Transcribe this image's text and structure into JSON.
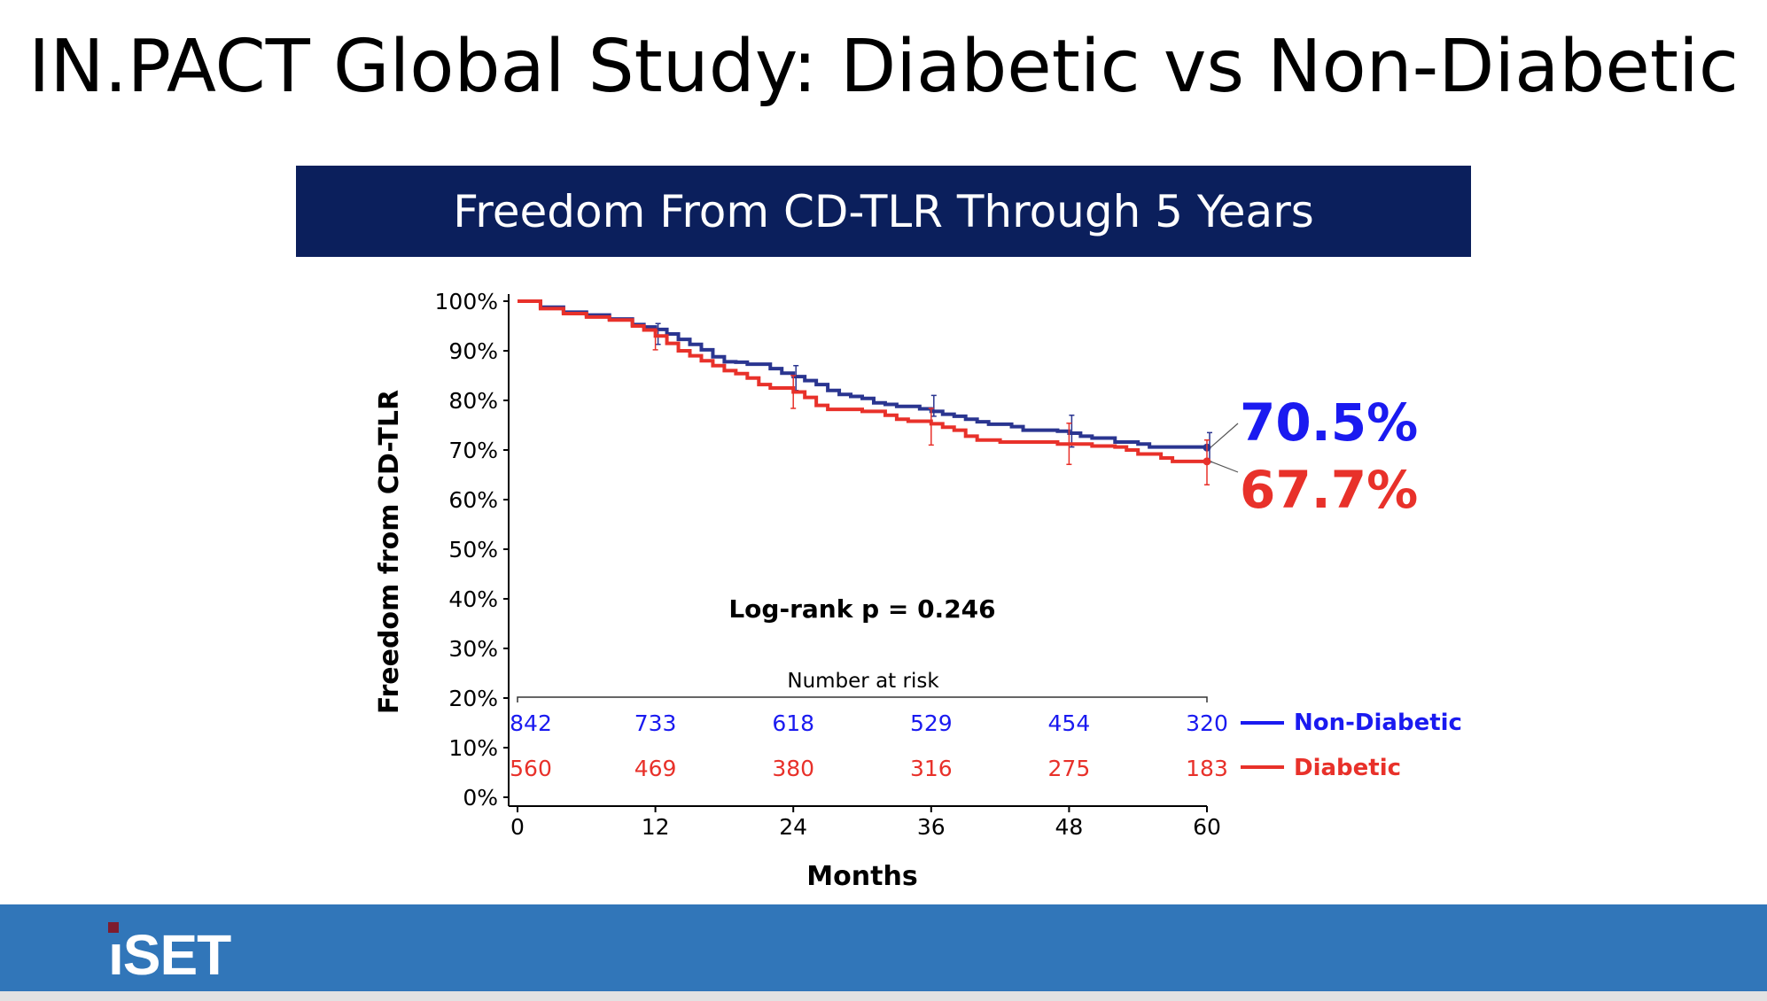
{
  "slide": {
    "title": "IN.PACT Global Study: Diabetic vs Non-Diabetic",
    "banner": "Freedom From CD-TLR Through 5 Years"
  },
  "footer": {
    "logo_text": "iSET",
    "colors": {
      "bar": "#3176b9",
      "logo_dot": "#7e1c2e"
    }
  },
  "chart_data": {
    "type": "line",
    "subtype": "kaplan-meier step",
    "title": "Freedom From CD-TLR Through 5 Years",
    "xlabel": "Months",
    "ylabel": "Freedom from CD-TLR",
    "xlim": [
      0,
      60
    ],
    "ylim": [
      0,
      100
    ],
    "xticks": [
      "0",
      "12",
      "24",
      "36",
      "48",
      "60"
    ],
    "yticks": [
      "0%",
      "10%",
      "20%",
      "30%",
      "40%",
      "50%",
      "60%",
      "70%",
      "80%",
      "90%",
      "100%"
    ],
    "grid": false,
    "annotation": "Log-rank p = 0.246",
    "risk_table": {
      "title": "Number at risk",
      "months": [
        0,
        12,
        24,
        36,
        48,
        60
      ]
    },
    "series": [
      {
        "name": "Non-Diabetic",
        "color": "#2a3590",
        "label_color": "#1a1af0",
        "final_label": "70.5%",
        "at_risk": [
          "842",
          "733",
          "618",
          "529",
          "454",
          "320"
        ],
        "x": [
          0,
          2,
          4,
          6,
          8,
          10,
          11,
          12,
          13,
          14,
          15,
          16,
          17,
          18,
          19,
          20,
          22,
          23,
          24,
          25,
          26,
          27,
          28,
          29,
          30,
          31,
          32,
          33,
          35,
          36,
          37,
          38,
          39,
          40,
          41,
          43,
          44,
          47,
          48,
          49,
          50,
          52,
          54,
          55,
          60
        ],
        "y": [
          100,
          98.8,
          97.8,
          97.2,
          96.4,
          95.3,
          94.8,
          94.3,
          93.4,
          92.3,
          91.3,
          90.2,
          88.8,
          87.8,
          87.7,
          87.3,
          86.4,
          85.5,
          84.8,
          84.0,
          83.2,
          82.0,
          81.2,
          80.8,
          80.4,
          79.5,
          79.2,
          78.8,
          78.3,
          77.8,
          77.2,
          76.8,
          76.2,
          75.7,
          75.2,
          74.7,
          74.0,
          73.8,
          73.4,
          72.8,
          72.4,
          71.6,
          71.2,
          70.6,
          70.5
        ],
        "ci": [
          {
            "x": 12,
            "lo": 91.3,
            "hi": 95.5
          },
          {
            "x": 24,
            "lo": 82,
            "hi": 87
          },
          {
            "x": 36,
            "lo": 76.8,
            "hi": 81
          },
          {
            "x": 48,
            "lo": 70.6,
            "hi": 77
          },
          {
            "x": 60,
            "lo": 67.6,
            "hi": 73.5
          }
        ]
      },
      {
        "name": "Diabetic",
        "color": "#e8312a",
        "label_color": "#e8312a",
        "final_label": "67.7%",
        "at_risk": [
          "560",
          "469",
          "380",
          "316",
          "275",
          "183"
        ],
        "x": [
          0,
          2,
          4,
          6,
          8,
          10,
          11,
          12,
          13,
          14,
          15,
          16,
          17,
          18,
          19,
          20,
          21,
          22,
          24,
          25,
          26,
          27,
          30,
          32,
          33,
          34,
          36,
          37,
          38,
          39,
          40,
          42,
          47,
          50,
          52,
          53,
          54,
          56,
          57,
          60
        ],
        "y": [
          100,
          98.5,
          97.5,
          96.8,
          96.2,
          95.0,
          94.2,
          93.0,
          91.5,
          90.0,
          89.0,
          88.0,
          87.0,
          86.0,
          85.4,
          84.5,
          83.2,
          82.5,
          81.7,
          80.6,
          79.0,
          78.2,
          77.8,
          77.0,
          76.2,
          75.8,
          75.3,
          74.6,
          74.0,
          72.8,
          72.0,
          71.6,
          71.2,
          70.8,
          70.6,
          70.0,
          69.2,
          68.4,
          67.7,
          67.7
        ],
        "ci": [
          {
            "x": 12,
            "lo": 90.2,
            "hi": 94
          },
          {
            "x": 24,
            "lo": 78.4,
            "hi": 85
          },
          {
            "x": 36,
            "lo": 71,
            "hi": 78.4
          },
          {
            "x": 48,
            "lo": 67.1,
            "hi": 75.4
          },
          {
            "x": 60,
            "lo": 63,
            "hi": 72
          }
        ]
      }
    ]
  }
}
